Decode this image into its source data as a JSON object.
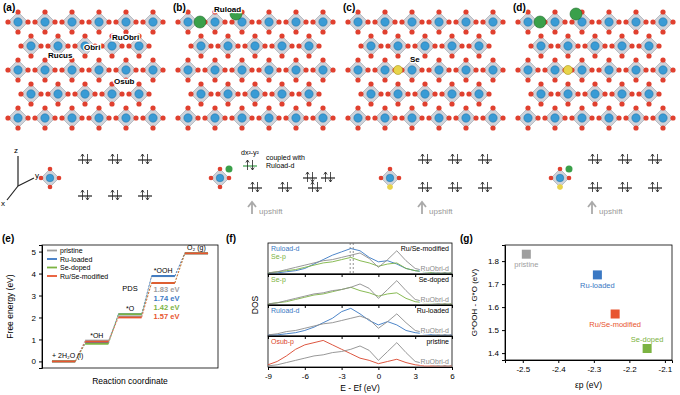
{
  "structures": {
    "panels": [
      {
        "label": "(a)",
        "annotations": [
          "Rucus",
          "Obri",
          "RuObri",
          "Osub"
        ]
      },
      {
        "label": "(b)",
        "annotations": [
          "Ruload"
        ],
        "orbital_note": [
          "dx²-y²",
          "coupled with",
          "Ruload-d"
        ],
        "shift": "upshift"
      },
      {
        "label": "(c)",
        "annotations": [
          "Se"
        ],
        "shift": "upshift"
      },
      {
        "label": "(d)",
        "shift": "upshift"
      }
    ],
    "axes": [
      "z",
      "y",
      "x"
    ]
  },
  "chart_data": [
    {
      "type": "line",
      "line_style": "step",
      "panel_label": "(e)",
      "x_label": "Reaction coordinate",
      "y_label": "Free energy (eV)",
      "categories": [
        "+ 2H₂O (l)",
        "*OH",
        "*O",
        "*OOH",
        "O₂ (g)"
      ],
      "ylim": [
        -0.3,
        5.3
      ],
      "yticks": [
        0,
        1,
        2,
        3,
        4,
        5
      ],
      "tick_labels": "y",
      "legend": "upper left",
      "annotations": [
        "PDS"
      ],
      "series": [
        {
          "name": "pristine",
          "color": "#9e9e9e",
          "values": [
            0,
            0.95,
            2.05,
            3.88,
            4.92
          ],
          "pds_label": "1.83 eV"
        },
        {
          "name": "Ru-loaded",
          "color": "#3a78c3",
          "values": [
            0,
            0.85,
            2.15,
            3.89,
            4.92
          ],
          "pds_label": "1.74 eV"
        },
        {
          "name": "Se-doped",
          "color": "#7cb342",
          "values": [
            0,
            0.8,
            2.15,
            3.57,
            4.92
          ],
          "pds_label": "1.42 eV"
        },
        {
          "name": "Ru/Se-modified",
          "color": "#e8552f",
          "values": [
            0,
            0.9,
            2.0,
            3.57,
            4.92
          ],
          "pds_label": "1.57 eV"
        }
      ]
    },
    {
      "type": "line",
      "panel_label": "(f)",
      "title": "Ru/Se-modified",
      "y_label": "DOS",
      "x": [
        -9,
        -8.25,
        -7.5,
        -6.75,
        -6,
        -5.25,
        -4.5,
        -3.75,
        -3,
        -2.25,
        -1.5,
        -0.75,
        0,
        0.75,
        1.5,
        2.25,
        3,
        3.75,
        4.5,
        5.25,
        6
      ],
      "xlim": [
        -9,
        6
      ],
      "xticks": [
        -9,
        -6,
        -3,
        0,
        3,
        6
      ],
      "ylim": [
        0,
        2.8
      ],
      "tick_labels": false,
      "reference_lines": [
        -2.3,
        -2.05
      ],
      "series": [
        {
          "name": "Ruload-d",
          "color": "#3a78c3",
          "values": [
            0.1,
            0.1,
            0.2,
            0.3,
            0.5,
            0.9,
            1.3,
            1.7,
            2.0,
            2.3,
            2.1,
            1.5,
            1.1,
            1.2,
            0.9,
            0.5,
            0.3,
            0.2,
            0.1,
            0.1,
            0.1
          ]
        },
        {
          "name": "Se-p",
          "color": "#7cb342",
          "values": [
            0.1,
            0.2,
            0.3,
            0.4,
            0.6,
            0.8,
            1.0,
            1.1,
            1.3,
            1.5,
            1.2,
            1.0,
            0.7,
            0.9,
            1.0,
            0.5,
            0.3,
            0.2,
            0.1,
            0.1,
            0.1
          ]
        },
        {
          "name": "RuObri-d",
          "color": "#8c8c8c",
          "values": [
            0.1,
            0.2,
            0.4,
            0.6,
            0.8,
            1.0,
            1.2,
            1.3,
            1.5,
            1.7,
            1.9,
            1.4,
            0.6,
            1.3,
            2.1,
            1.2,
            0.5,
            0.3,
            0.2,
            0.1,
            0.1
          ]
        }
      ]
    },
    {
      "type": "line",
      "title": "Se-doped",
      "x": [
        -9,
        -8.25,
        -7.5,
        -6.75,
        -6,
        -5.25,
        -4.5,
        -3.75,
        -3,
        -2.25,
        -1.5,
        -0.75,
        0,
        0.75,
        1.5,
        2.25,
        3,
        3.75,
        4.5,
        5.25,
        6
      ],
      "xlim": [
        -9,
        6
      ],
      "xticks": [
        -9,
        -6,
        -3,
        0,
        3,
        6
      ],
      "ylim": [
        0,
        2.8
      ],
      "tick_labels": false,
      "series": [
        {
          "name": "Se-p",
          "color": "#7cb342",
          "values": [
            0.1,
            0.2,
            0.3,
            0.5,
            0.7,
            0.9,
            1.0,
            1.2,
            1.4,
            1.6,
            1.3,
            1.1,
            0.8,
            1.0,
            1.1,
            0.6,
            0.3,
            0.2,
            0.2,
            0.1,
            0.1
          ]
        },
        {
          "name": "RuObri-d",
          "color": "#8c8c8c",
          "values": [
            0.1,
            0.2,
            0.4,
            0.6,
            0.8,
            1.0,
            1.1,
            1.3,
            1.4,
            1.6,
            1.9,
            1.5,
            0.6,
            1.4,
            2.2,
            1.3,
            0.5,
            0.3,
            0.2,
            0.1,
            0.1
          ]
        }
      ]
    },
    {
      "type": "line",
      "title": "Ru-loaded",
      "x": [
        -9,
        -8.25,
        -7.5,
        -6.75,
        -6,
        -5.25,
        -4.5,
        -3.75,
        -3,
        -2.25,
        -1.5,
        -0.75,
        0,
        0.75,
        1.5,
        2.25,
        3,
        3.75,
        4.5,
        5.25,
        6
      ],
      "xlim": [
        -9,
        6
      ],
      "xticks": [
        -9,
        -6,
        -3,
        0,
        3,
        6
      ],
      "ylim": [
        0,
        2.8
      ],
      "tick_labels": false,
      "series": [
        {
          "name": "Ruload-d",
          "color": "#3a78c3",
          "values": [
            0.1,
            0.1,
            0.2,
            0.3,
            0.5,
            0.8,
            1.2,
            1.6,
            2.2,
            2.5,
            2.0,
            1.4,
            1.0,
            1.3,
            1.0,
            0.5,
            0.3,
            0.2,
            0.1,
            0.1,
            0.1
          ]
        },
        {
          "name": "RuObri-d",
          "color": "#8c8c8c",
          "values": [
            0.1,
            0.2,
            0.4,
            0.5,
            0.7,
            0.9,
            1.1,
            1.2,
            1.4,
            1.6,
            1.8,
            1.5,
            0.7,
            1.3,
            2.0,
            1.2,
            0.5,
            0.3,
            0.2,
            0.1,
            0.1
          ]
        }
      ]
    },
    {
      "type": "line",
      "title": "pristine",
      "x_label": "E - Ef (eV)",
      "x": [
        -9,
        -8.25,
        -7.5,
        -6.75,
        -6,
        -5.25,
        -4.5,
        -3.75,
        -3,
        -2.25,
        -1.5,
        -0.75,
        0,
        0.75,
        1.5,
        2.25,
        3,
        3.75,
        4.5,
        5.25,
        6
      ],
      "xlim": [
        -9,
        6
      ],
      "xticks": [
        -9,
        -6,
        -3,
        0,
        3,
        6
      ],
      "ylim": [
        0,
        2.8
      ],
      "tick_labels": "x",
      "series": [
        {
          "name": "Osub-p",
          "color": "#d9442b",
          "values": [
            0.2,
            0.5,
            1.0,
            1.6,
            2.0,
            2.2,
            2.4,
            2.0,
            1.6,
            1.2,
            0.8,
            0.6,
            0.3,
            0.5,
            0.7,
            0.4,
            0.2,
            0.1,
            0.1,
            0.1,
            0.1
          ]
        },
        {
          "name": "RuObri-d",
          "color": "#8c8c8c",
          "values": [
            0.1,
            0.2,
            0.4,
            0.6,
            0.8,
            1.0,
            1.1,
            1.3,
            1.4,
            1.6,
            1.9,
            1.5,
            0.6,
            1.4,
            2.2,
            1.3,
            0.5,
            0.3,
            0.2,
            0.1,
            0.1
          ]
        }
      ]
    },
    {
      "type": "scatter",
      "panel_label": "(g)",
      "x_label": "εp (eV)",
      "y_label": "G*OOH - G*O (eV)",
      "marker": "square",
      "x": [
        -2.49,
        -2.29,
        -2.24,
        -2.15
      ],
      "values": [
        1.83,
        1.74,
        1.57,
        1.42
      ],
      "labels": [
        "pristine",
        "Ru-loaded",
        "Ru/Se-modified",
        "Se-doped"
      ],
      "colors": [
        "#9e9e9e",
        "#3a78c3",
        "#e8552f",
        "#7cb342"
      ],
      "xlim": [
        -2.55,
        -2.08
      ],
      "xticks": [
        -2.5,
        -2.4,
        -2.3,
        -2.2,
        -2.1
      ],
      "ylim": [
        1.37,
        1.87
      ],
      "yticks": [
        1.4,
        1.5,
        1.6,
        1.7,
        1.8
      ]
    }
  ]
}
